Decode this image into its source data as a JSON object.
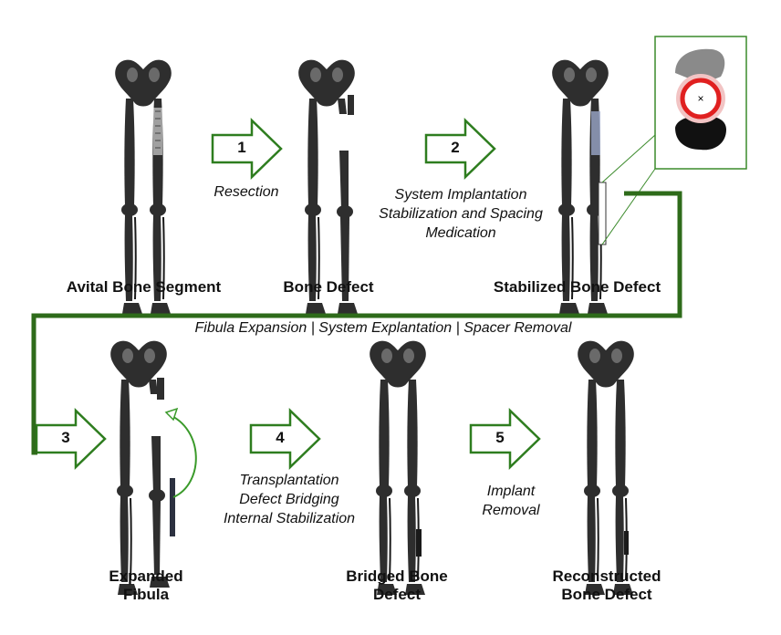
{
  "stages": {
    "s1": "Avital Bone Segment",
    "s2": "Bone Defect",
    "s3": "Stabilized Bone Defect",
    "s4_line1": "Expanded",
    "s4_line2": "Fibula",
    "s5_line1": "Bridged Bone",
    "s5_line2": "Defect",
    "s6_line1": "Reconstructed",
    "s6_line2": "Bone Defect"
  },
  "steps": {
    "n1": "1",
    "n2": "2",
    "n3": "3",
    "n4": "4",
    "n5": "5",
    "c1": "Resection",
    "c2_line1": "System Implantation",
    "c2_line2": "Stabilization and Spacing",
    "c2_line3": "Medication",
    "c3": "Fibula Expansion | System Explantation | Spacer Removal",
    "c4_line1": "Transplantation",
    "c4_line2": "Defect Bridging",
    "c4_line3": "Internal Stabilization",
    "c5_line1": "Implant",
    "c5_line2": "Removal"
  },
  "colors": {
    "arrow": "#2e7d1f",
    "connector": "#2e6b1a",
    "bone": "#2e2e2e",
    "implant": "#9aa6c8",
    "ring": "#e02020"
  },
  "inset": {
    "marker": "×"
  }
}
